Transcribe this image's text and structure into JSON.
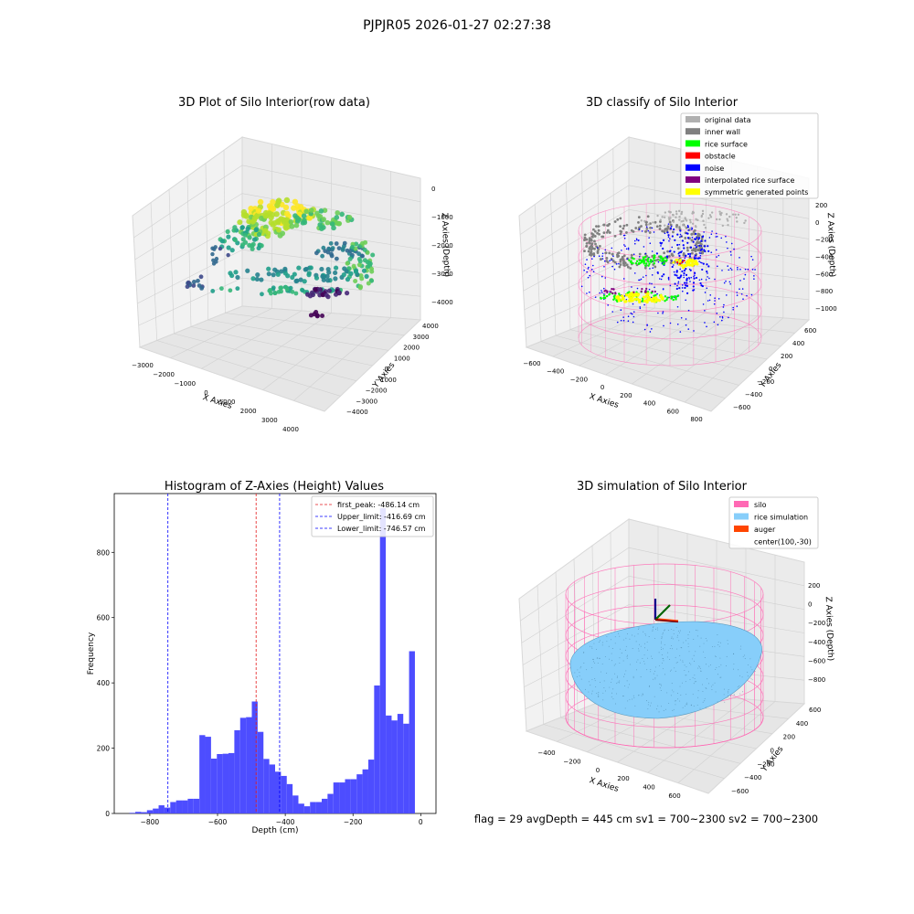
{
  "figure": {
    "suptitle": "PJPJR05 2026-01-27 02:27:38",
    "footer": "flag = 29  avgDepth = 445 cm  sv1 = 700~2300  sv2 = 700~2300"
  },
  "colors": {
    "hist_bar": "#4d4dff",
    "first_peak": "#e41a1c",
    "limit_lines": "#0000ff",
    "silo_wire": "#ff69b4",
    "rice_sim": "#87cefa",
    "auger": "#ff4500",
    "inner_wall": "#808080",
    "rice_surface": "#00ff00",
    "obstacle": "#ff0000",
    "noise": "#0000ff",
    "interp_rice": "#800080",
    "symmetric": "#ffff00",
    "original": "#b0b0b0"
  },
  "panel_raw": {
    "title": "3D Plot of Silo Interior(row data)",
    "xlabel": "X Axies",
    "ylabel": "Y Axies",
    "zlabel": "Z Axies (Depth)",
    "xticks": [
      "−3000",
      "−2000",
      "−1000",
      "0",
      "1000",
      "2000",
      "3000",
      "4000"
    ],
    "yticks": [
      "4000",
      "3000",
      "2000",
      "1000",
      "0",
      "−1000",
      "−2000",
      "−3000",
      "−4000"
    ],
    "zticks": [
      "0",
      "−1000",
      "−2000",
      "−3000",
      "−4000"
    ],
    "colormap": "viridis"
  },
  "panel_classify": {
    "title": "3D classify of Silo Interior",
    "xlabel": "X Axies",
    "ylabel": "Y Axies",
    "zlabel": "Z Axies (Depth)",
    "xticks": [
      "−600",
      "−400",
      "−200",
      "0",
      "200",
      "400",
      "600",
      "800"
    ],
    "yticks": [
      "600",
      "400",
      "200",
      "0",
      "−200",
      "−400",
      "−600"
    ],
    "zticks": [
      "200",
      "0",
      "−200",
      "−400",
      "−600",
      "−800",
      "−1000"
    ],
    "legend": [
      {
        "label": "original data",
        "color": "#b0b0b0"
      },
      {
        "label": "inner wall",
        "color": "#808080"
      },
      {
        "label": "rice surface",
        "color": "#00ff00"
      },
      {
        "label": "obstacle",
        "color": "#ff0000"
      },
      {
        "label": "noise",
        "color": "#0000ff"
      },
      {
        "label": "interpolated rice surface",
        "color": "#800080"
      },
      {
        "label": "symmetric generated points",
        "color": "#ffff00"
      }
    ]
  },
  "panel_sim": {
    "title": "3D simulation of Silo Interior",
    "xlabel": "X Axies",
    "ylabel": "Y Axies",
    "zlabel": "Z Axies (Depth)",
    "xticks": [
      "−400",
      "−200",
      "0",
      "200",
      "400",
      "600"
    ],
    "yticks": [
      "600",
      "400",
      "200",
      "0",
      "−200",
      "−400",
      "−600"
    ],
    "zticks": [
      "200",
      "0",
      "−200",
      "−400",
      "−600",
      "−800"
    ],
    "legend": [
      {
        "label": "silo",
        "color": "#ff69b4"
      },
      {
        "label": "rice simulation",
        "color": "#87cefa"
      },
      {
        "label": "auger",
        "color": "#ff4500"
      },
      {
        "label": "center(100,-30)",
        "color": ""
      }
    ]
  },
  "chart_data": {
    "type": "bar",
    "title": "Histogram of Z-Axies (Height) Values",
    "xlabel": "Depth (cm)",
    "ylabel": "Frequency",
    "xlim": [
      -905,
      45
    ],
    "ylim": [
      0,
      980
    ],
    "xticks": [
      -800,
      -600,
      -400,
      -200,
      0
    ],
    "xtick_labels": [
      "−800",
      "−600",
      "−400",
      "−200",
      "0"
    ],
    "yticks": [
      0,
      200,
      400,
      600,
      800
    ],
    "bin_start": -860,
    "bin_width": 17.2,
    "values": [
      2,
      5,
      4,
      10,
      15,
      25,
      18,
      35,
      40,
      40,
      45,
      45,
      240,
      235,
      168,
      182,
      183,
      185,
      255,
      293,
      295,
      343,
      250,
      167,
      150,
      128,
      115,
      90,
      55,
      30,
      22,
      35,
      35,
      45,
      60,
      95,
      95,
      105,
      105,
      120,
      135,
      165,
      392,
      935,
      300,
      285,
      305,
      275,
      497
    ],
    "vlines": [
      {
        "label": "first_peak: -486.14 cm",
        "x": -486.14,
        "color": "#e41a1c"
      },
      {
        "label": "Upper_limit: -416.69 cm",
        "x": -416.69,
        "color": "#0000ff"
      },
      {
        "label": "Lower_limit: -746.57 cm",
        "x": -746.57,
        "color": "#0000ff"
      }
    ]
  }
}
